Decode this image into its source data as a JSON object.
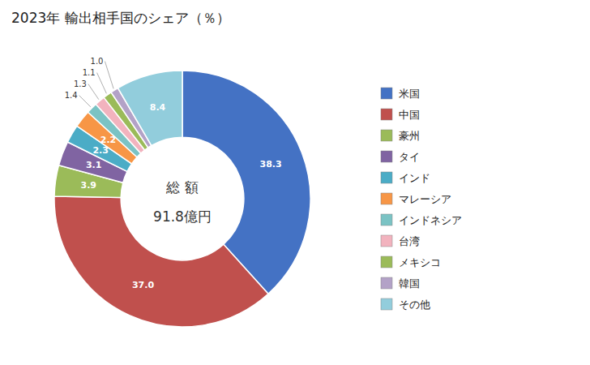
{
  "chart_data": {
    "type": "pie",
    "title": "2023年 輸出相手国のシェア（％）",
    "annotations": [
      "総 額",
      "91.8億円"
    ],
    "categories": [
      "米国",
      "中国",
      "豪州",
      "タイ",
      "インド",
      "マレーシア",
      "インドネシア",
      "台湾",
      "メキシコ",
      "韓国",
      "その他"
    ],
    "values": [
      38.3,
      37.0,
      3.9,
      3.1,
      2.3,
      2.2,
      1.4,
      1.3,
      1.1,
      1.0,
      8.4
    ],
    "value_labels": [
      "38.3",
      "37.0",
      "3.9",
      "3.1",
      "2.3",
      "2.2",
      "1.4",
      "1.3",
      "1.1",
      "1.0",
      "8.4"
    ],
    "colors": [
      "#4472C4",
      "#C0504D",
      "#9BBB59",
      "#8064A2",
      "#4BACC6",
      "#F79646",
      "#7BC3C4",
      "#F2B3BE",
      "#9BBB59",
      "#B3A2C7",
      "#92CDDC"
    ],
    "data_labels": true,
    "legend": "right"
  }
}
